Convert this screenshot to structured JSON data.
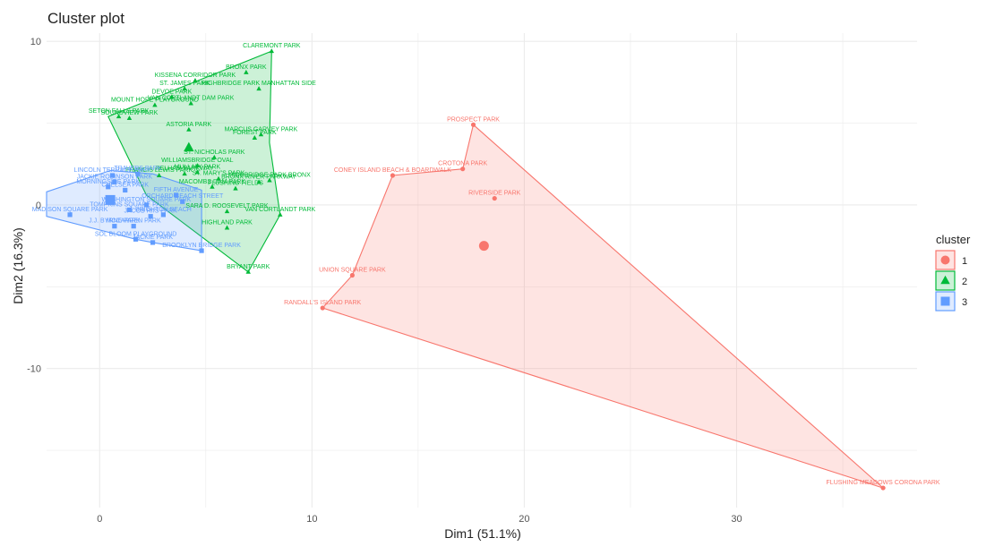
{
  "chart_data": {
    "type": "scatter",
    "title": "Cluster plot",
    "xlabel": "Dim1 (51.1%)",
    "ylabel": "Dim2 (16.3%)",
    "xlim": [
      -2.5,
      38.5
    ],
    "ylim": [
      -18.5,
      10.5
    ],
    "xticks": [
      0,
      10,
      20,
      30
    ],
    "yticks": [
      10,
      0,
      -10
    ],
    "grid": true,
    "legend": {
      "title": "cluster",
      "position": "right"
    },
    "clusters": [
      {
        "name": "1",
        "color": "#F8766D",
        "fill": "#F8766D",
        "shape": "circle",
        "centroid": [
          18.1,
          -2.5
        ],
        "hull": [
          [
            17.6,
            4.9
          ],
          [
            36.9,
            -17.3
          ],
          [
            10.5,
            -6.3
          ],
          [
            11.9,
            -4.3
          ],
          [
            13.8,
            1.8
          ],
          [
            17.1,
            2.2
          ]
        ],
        "points": [
          {
            "label": "PROSPECT PARK",
            "x": 17.6,
            "y": 4.9
          },
          {
            "label": "CROTONA PARK",
            "x": 17.1,
            "y": 2.2
          },
          {
            "label": "CONEY ISLAND BEACH & BOARDWALK",
            "x": 13.8,
            "y": 1.8
          },
          {
            "label": "RIVERSIDE PARK",
            "x": 18.6,
            "y": 0.4
          },
          {
            "label": "UNION SQUARE PARK",
            "x": 11.9,
            "y": -4.3
          },
          {
            "label": "RANDALL'S ISLAND PARK",
            "x": 10.5,
            "y": -6.3
          },
          {
            "label": "FLUSHING MEADOWS CORONA PARK",
            "x": 36.9,
            "y": -17.3
          }
        ]
      },
      {
        "name": "2",
        "color": "#00BA38",
        "fill": "#00BA38",
        "shape": "triangle",
        "centroid": [
          4.2,
          3.5
        ],
        "hull": [
          [
            8.1,
            9.4
          ],
          [
            0.4,
            5.4
          ],
          [
            2.2,
            0.6
          ],
          [
            7.0,
            -4.1
          ],
          [
            8.5,
            -0.6
          ],
          [
            8.0,
            3.8
          ]
        ],
        "points": [
          {
            "label": "CLAREMONT PARK",
            "x": 8.1,
            "y": 9.4
          },
          {
            "label": "BRONX PARK",
            "x": 6.9,
            "y": 8.1
          },
          {
            "label": "KISSENA CORRIDOR PARK",
            "x": 4.5,
            "y": 7.6
          },
          {
            "label": "HIGHBRIDGE PARK MANHATTAN SIDE",
            "x": 7.5,
            "y": 7.1
          },
          {
            "label": "ST. JAMES PARK",
            "x": 4.0,
            "y": 7.1
          },
          {
            "label": "DEVOE PARK",
            "x": 3.4,
            "y": 6.6
          },
          {
            "label": "VAN CORTLANDT DAM PARK",
            "x": 4.3,
            "y": 6.2
          },
          {
            "label": "MOUNT HOPE PLAYGROUND",
            "x": 2.6,
            "y": 6.1
          },
          {
            "label": "SETON FALLS PARK",
            "x": 0.9,
            "y": 5.4
          },
          {
            "label": "SOUNDVIEW PARK",
            "x": 1.4,
            "y": 5.3
          },
          {
            "label": "ASTORIA PARK",
            "x": 4.2,
            "y": 4.6
          },
          {
            "label": "MARCUS GARVEY PARK",
            "x": 7.6,
            "y": 4.3
          },
          {
            "label": "FOREST PARK",
            "x": 7.3,
            "y": 4.1
          },
          {
            "label": "ST. NICHOLAS PARK",
            "x": 5.4,
            "y": 2.9
          },
          {
            "label": "WILLIAMSBRIDGE OVAL",
            "x": 4.6,
            "y": 2.4
          },
          {
            "label": "MULLALY PARK",
            "x": 4.6,
            "y": 2.0
          },
          {
            "label": "PELHAM PARKWAY",
            "x": 4.0,
            "y": 1.9
          },
          {
            "label": "FRANCIS LEWIS PARK",
            "x": 2.8,
            "y": 1.8
          },
          {
            "label": "ST. MARY'S PARK",
            "x": 5.6,
            "y": 1.6
          },
          {
            "label": "BRONX RIVER PARKWAY",
            "x": 7.5,
            "y": 1.4
          },
          {
            "label": "HIGHBRIDGE PARK BRONX",
            "x": 8.0,
            "y": 1.5
          },
          {
            "label": "MACOMBS DAM PARK",
            "x": 5.3,
            "y": 1.1
          },
          {
            "label": "FLUSHING FIELDS",
            "x": 6.4,
            "y": 1.0
          },
          {
            "label": "SARA D. ROOSEVELT PARK",
            "x": 6.0,
            "y": -0.4
          },
          {
            "label": "VAN CORTLANDT PARK",
            "x": 8.5,
            "y": -0.6
          },
          {
            "label": "HIGHLAND PARK",
            "x": 6.0,
            "y": -1.4
          },
          {
            "label": "BRYANT PARK",
            "x": 7.0,
            "y": -4.1
          }
        ]
      },
      {
        "name": "3",
        "color": "#619CFF",
        "fill": "#619CFF",
        "shape": "square",
        "centroid": [
          0.5,
          0.3
        ],
        "hull": [
          [
            -2.5,
            0.8
          ],
          [
            0.5,
            2.1
          ],
          [
            2.5,
            1.9
          ],
          [
            4.8,
            0.9
          ],
          [
            4.8,
            -2.8
          ],
          [
            2.5,
            -2.3
          ],
          [
            1.7,
            -2.1
          ],
          [
            -2.5,
            -0.7
          ]
        ],
        "points": [
          {
            "label": "LINCOLN TERRACE PARK",
            "x": 0.6,
            "y": 1.8
          },
          {
            "label": "TRAVERS PARK",
            "x": 1.8,
            "y": 1.9
          },
          {
            "label": "JACKIE ROBINSON PARK",
            "x": 0.7,
            "y": 1.4
          },
          {
            "label": "MORNINGSIDE PARK",
            "x": 0.4,
            "y": 1.1
          },
          {
            "label": "CHELSEA PARK",
            "x": 1.2,
            "y": 0.9
          },
          {
            "label": "FIFTH AVENUE",
            "x": 3.6,
            "y": 0.6
          },
          {
            "label": "ORCHARD BEACH STREET",
            "x": 3.9,
            "y": 0.2
          },
          {
            "label": "WASHINGTON SQUARE PARK",
            "x": 2.2,
            "y": 0.0
          },
          {
            "label": "TOMPKINS SQUARE PARK",
            "x": 1.4,
            "y": -0.3
          },
          {
            "label": "MADISON SQUARE PARK",
            "x": -1.4,
            "y": -0.6
          },
          {
            "label": "JACOB RIIS PARK",
            "x": 2.4,
            "y": -0.7
          },
          {
            "label": "BRIGHTON BEACH",
            "x": 3.0,
            "y": -0.6
          },
          {
            "label": "J.J. BYRNE PARK",
            "x": 0.7,
            "y": -1.3
          },
          {
            "label": "MCCARREN PARK",
            "x": 1.6,
            "y": -1.3
          },
          {
            "label": "SOL BLOOM PLAYGROUND",
            "x": 1.7,
            "y": -2.1
          },
          {
            "label": "JACKIE PARK",
            "x": 2.5,
            "y": -2.3
          },
          {
            "label": "BROOKLYN BRIDGE PARK",
            "x": 4.8,
            "y": -2.8
          }
        ]
      }
    ]
  }
}
